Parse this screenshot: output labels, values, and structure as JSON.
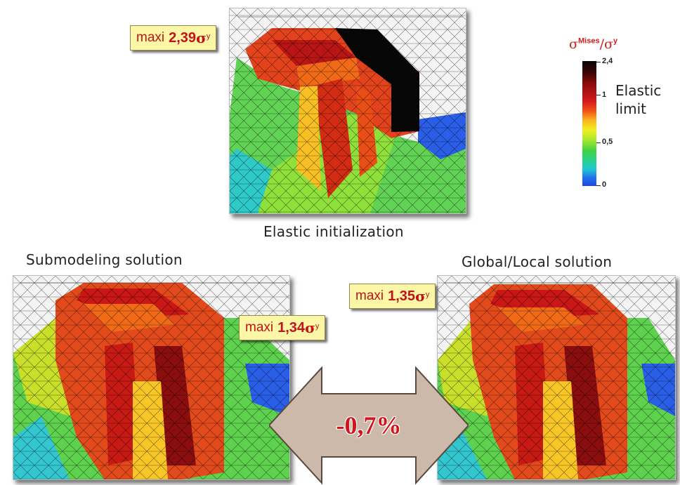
{
  "panels": {
    "top": {
      "caption": "Elastic initialization",
      "maxi_word": "maxi",
      "maxi_value": "2,39",
      "sigma": "σ",
      "sup": "y"
    },
    "left": {
      "caption": "Submodeling solution",
      "maxi_word": "maxi",
      "maxi_value": "1,34",
      "sigma": "σ",
      "sup": "y"
    },
    "right": {
      "caption": "Global/Local solution",
      "maxi_word": "maxi",
      "maxi_value": "1,35",
      "sigma": "σ",
      "sup": "y"
    }
  },
  "legend": {
    "title_main": "σ",
    "title_sup": "Mises",
    "title_tail": "/σ",
    "title_tail_sup": "y",
    "ticks": [
      "2,4",
      "1",
      "0,5",
      "0"
    ],
    "elastic_line1": "Elastic",
    "elastic_line2": "limit"
  },
  "comparison": {
    "difference": "-0,7%"
  },
  "colors": {
    "label_red": "#c0141c",
    "label_bg": "#fbf7a7",
    "arrow_fill": "#cdb9a9",
    "stress_high": "#d41a1a",
    "stress_low": "#1f44e6"
  }
}
